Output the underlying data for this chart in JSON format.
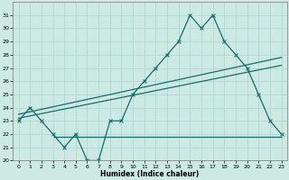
{
  "xlabel": "Humidex (Indice chaleur)",
  "ylabel": "",
  "xlim": [
    -0.5,
    23.5
  ],
  "ylim": [
    20,
    32
  ],
  "yticks": [
    20,
    21,
    22,
    23,
    24,
    25,
    26,
    27,
    28,
    29,
    30,
    31
  ],
  "xticks": [
    0,
    1,
    2,
    3,
    4,
    5,
    6,
    7,
    8,
    9,
    10,
    11,
    12,
    13,
    14,
    15,
    16,
    17,
    18,
    19,
    20,
    21,
    22,
    23
  ],
  "bg_color": "#cce9e4",
  "grid_color": "#aad4ce",
  "line_color": "#1a6b6b",
  "main_x": [
    0,
    1,
    2,
    3,
    4,
    5,
    6,
    7,
    8,
    9,
    10,
    11,
    12,
    13,
    14,
    15,
    16,
    17,
    18,
    19,
    20,
    21,
    22,
    23
  ],
  "main_y": [
    23,
    24,
    23,
    22,
    21,
    22,
    20,
    20,
    23,
    23,
    25,
    26,
    27,
    28,
    29,
    31,
    30,
    31,
    29,
    28,
    27,
    25,
    23,
    22
  ],
  "trend1_x": [
    0,
    23
  ],
  "trend1_y": [
    23.2,
    27.2
  ],
  "trend2_x": [
    0,
    23
  ],
  "trend2_y": [
    23.5,
    27.8
  ],
  "hline_y": 21.8,
  "hline_x_start": 3,
  "hline_x_end": 23
}
